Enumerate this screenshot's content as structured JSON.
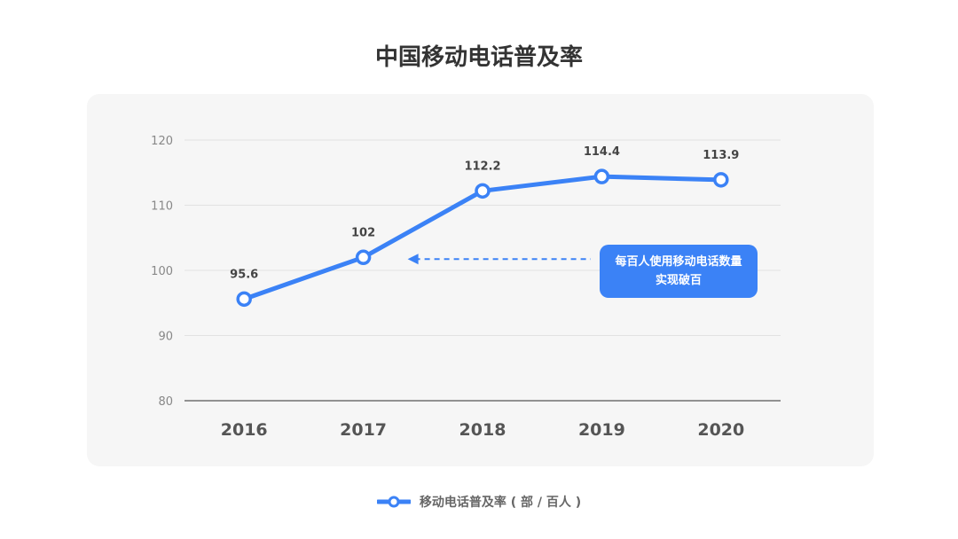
{
  "chart_data": {
    "type": "line",
    "title": "中国移动电话普及率",
    "categories": [
      "2016",
      "2017",
      "2018",
      "2019",
      "2020"
    ],
    "series": [
      {
        "name": "移动电话普及率 ( 部 / 百人 )",
        "values": [
          95.6,
          102,
          112.2,
          114.4,
          113.9
        ],
        "data_labels": [
          "95.6",
          "102",
          "112.2",
          "114.4",
          "113.9"
        ],
        "color": "#3b82f6"
      }
    ],
    "ylim": [
      80,
      120
    ],
    "yticks": [
      "80",
      "90",
      "100",
      "110",
      "120"
    ],
    "grid": true,
    "legend_position": "bottom-center",
    "annotation": {
      "text": "每百人使用移动电话数量实现破百",
      "points_to": "2017"
    }
  }
}
